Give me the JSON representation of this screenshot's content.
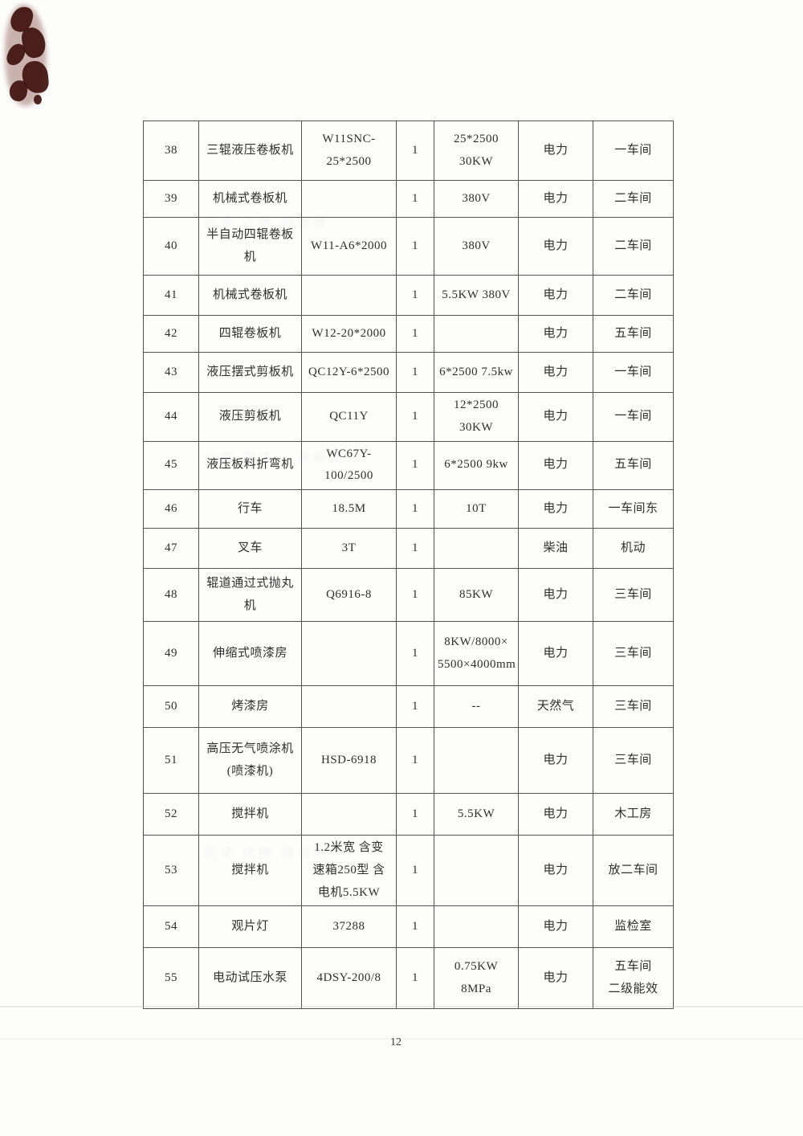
{
  "page": {
    "number": "12"
  },
  "table": {
    "column_keys": [
      "serial",
      "name",
      "model",
      "qty",
      "spec",
      "energy",
      "location"
    ],
    "rows": [
      [
        "38",
        "三辊液压卷板机",
        "W11SNC-25*2500",
        "1",
        "25*2500\n30KW",
        "电力",
        "一车间"
      ],
      [
        "39",
        "机械式卷板机",
        "",
        "1",
        "380V",
        "电力",
        "二车间"
      ],
      [
        "40",
        "半自动四辊卷板\n机",
        "W11-A6*2000",
        "1",
        "380V",
        "电力",
        "二车间"
      ],
      [
        "41",
        "机械式卷板机",
        "",
        "1",
        "5.5KW 380V",
        "电力",
        "二车间"
      ],
      [
        "42",
        "四辊卷板机",
        "W12-20*2000",
        "1",
        "",
        "电力",
        "五车间"
      ],
      [
        "43",
        "液压摆式剪板机",
        "QC12Y-6*2500",
        "1",
        "6*2500 7.5kw",
        "电力",
        "一车间"
      ],
      [
        "44",
        "液压剪板机",
        "QC11Y",
        "1",
        "12*2500 30KW",
        "电力",
        "一车间"
      ],
      [
        "45",
        "液压板料折弯机",
        "WC67Y-100/2500",
        "1",
        "6*2500 9kw",
        "电力",
        "五车间"
      ],
      [
        "46",
        "行车",
        "18.5M",
        "1",
        "10T",
        "电力",
        "一车间东"
      ],
      [
        "47",
        "叉车",
        "3T",
        "1",
        "",
        "柴油",
        "机动"
      ],
      [
        "48",
        "辊道通过式抛丸\n机",
        "Q6916-8",
        "1",
        "85KW",
        "电力",
        "三车间"
      ],
      [
        "49",
        "伸缩式喷漆房",
        "",
        "1",
        "8KW/8000×\n5500×4000mm",
        "电力",
        "三车间"
      ],
      [
        "50",
        "烤漆房",
        "",
        "1",
        "--",
        "天然气",
        "三车间"
      ],
      [
        "51",
        "高压无气喷涂机\n(喷漆机)",
        "HSD-6918",
        "1",
        "",
        "电力",
        "三车间"
      ],
      [
        "52",
        "搅拌机",
        "",
        "1",
        "5.5KW",
        "电力",
        "木工房"
      ],
      [
        "53",
        "搅拌机",
        "1.2米宽 含变\n速箱250型 含\n电机5.5KW",
        "1",
        "",
        "电力",
        "放二车间"
      ],
      [
        "54",
        "观片灯",
        "37288",
        "1",
        "",
        "电力",
        "监检室"
      ],
      [
        "55",
        "电动试压水泵",
        "4DSY-200/8",
        "1",
        "0.75KW  8MPa",
        "电力",
        "五车间\n二级能效"
      ]
    ]
  },
  "artifacts": {
    "stain_color": "#3f120e",
    "border_color": "#525252",
    "ghost_texts": [
      "卷板机 电力 车间",
      "剪板机 一车间 电力",
      "搅拌机 电力 车间"
    ]
  }
}
